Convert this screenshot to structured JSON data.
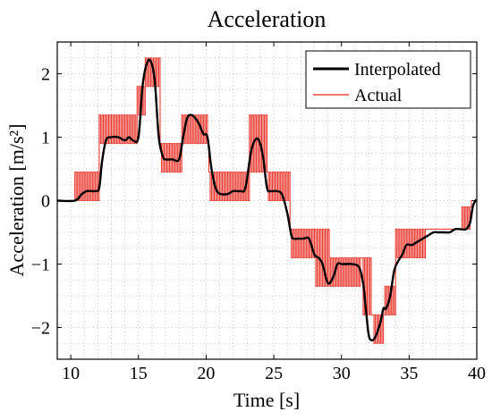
{
  "chart_data": {
    "type": "line",
    "title": "Acceleration",
    "xlabel": "Time [s]",
    "ylabel": "Acceleration [m/s²]",
    "xlim": [
      9,
      40
    ],
    "ylim": [
      -2.5,
      2.5
    ],
    "xticks": [
      10,
      15,
      20,
      25,
      30,
      35,
      40
    ],
    "yticks": [
      -2,
      -1,
      0,
      1,
      2
    ],
    "xtick_labels": [
      "10",
      "15",
      "20",
      "25",
      "30",
      "35",
      "40"
    ],
    "ytick_labels": [
      "−2",
      "−1",
      "0",
      "1",
      "2"
    ],
    "grid": true,
    "legend_position": "top-right",
    "series": [
      {
        "name": "Interpolated",
        "color": "#000000",
        "x": [
          9,
          10.3,
          10.8,
          11.2,
          11.8,
          12.1,
          12.3,
          12.6,
          13.0,
          13.5,
          14.0,
          14.3,
          14.6,
          15.0,
          15.3,
          15.6,
          15.9,
          16.2,
          16.5,
          16.8,
          17.0,
          17.5,
          18.0,
          18.3,
          18.6,
          18.9,
          19.2,
          19.5,
          19.8,
          20.1,
          20.4,
          20.8,
          21.5,
          22.0,
          22.5,
          22.9,
          23.3,
          23.6,
          23.9,
          24.2,
          24.5,
          24.8,
          25.2,
          25.6,
          26.0,
          26.3,
          26.5,
          26.8,
          27.2,
          27.6,
          28.0,
          28.3,
          28.6,
          29.0,
          29.4,
          29.7,
          30.0,
          30.3,
          30.8,
          31.3,
          31.6,
          31.8,
          32.0,
          32.2,
          32.5,
          32.9,
          33.1,
          33.3,
          33.6,
          33.9,
          34.2,
          34.5,
          34.8,
          35.2,
          35.6,
          36.0,
          36.4,
          36.8,
          37.2,
          37.6,
          38.0,
          38.4,
          38.8,
          39.2,
          39.5,
          39.7,
          39.9,
          40
        ],
        "y": [
          0,
          0,
          0.1,
          0.15,
          0.15,
          0.2,
          0.6,
          0.95,
          1.0,
          1.0,
          0.95,
          1.0,
          0.95,
          1.0,
          1.8,
          2.15,
          2.2,
          1.9,
          1.0,
          0.7,
          0.65,
          0.65,
          0.65,
          1.0,
          1.3,
          1.35,
          1.3,
          1.2,
          1.05,
          1.0,
          0.5,
          0.15,
          0.1,
          0.15,
          0.15,
          0.2,
          0.75,
          0.95,
          0.95,
          0.7,
          0.2,
          0.15,
          0.15,
          0.1,
          -0.2,
          -0.55,
          -0.6,
          -0.6,
          -0.6,
          -0.6,
          -0.85,
          -0.9,
          -1.0,
          -1.3,
          -1.2,
          -1.0,
          -1.0,
          -1.0,
          -1.0,
          -1.05,
          -1.3,
          -1.7,
          -2.1,
          -2.2,
          -2.15,
          -1.9,
          -1.7,
          -1.7,
          -1.5,
          -1.1,
          -0.95,
          -0.85,
          -0.7,
          -0.7,
          -0.65,
          -0.6,
          -0.55,
          -0.5,
          -0.5,
          -0.5,
          -0.5,
          -0.45,
          -0.45,
          -0.45,
          -0.35,
          -0.1,
          0,
          0
        ]
      },
      {
        "name": "Actual",
        "color": "#e8281e"
      }
    ],
    "actual_levels": [
      {
        "from": 9,
        "to": 10.3,
        "low": 0,
        "high": 0
      },
      {
        "from": 10.3,
        "to": 12.1,
        "low": 0,
        "high": 0.45
      },
      {
        "from": 12.1,
        "to": 14.9,
        "low": 0.9,
        "high": 1.35
      },
      {
        "from": 14.9,
        "to": 15.5,
        "low": 1.35,
        "high": 1.8
      },
      {
        "from": 15.5,
        "to": 16.6,
        "low": 1.8,
        "high": 2.25
      },
      {
        "from": 16.6,
        "to": 18.2,
        "low": 0.45,
        "high": 0.9
      },
      {
        "from": 18.2,
        "to": 20.2,
        "low": 0.9,
        "high": 1.35
      },
      {
        "from": 20.2,
        "to": 23.2,
        "low": 0,
        "high": 0.45
      },
      {
        "from": 23.2,
        "to": 24.5,
        "low": 0.45,
        "high": 1.35
      },
      {
        "from": 24.5,
        "to": 26.2,
        "low": 0,
        "high": 0.45
      },
      {
        "from": 26.2,
        "to": 28.0,
        "low": -0.9,
        "high": -0.45
      },
      {
        "from": 28.0,
        "to": 29.2,
        "low": -1.35,
        "high": -0.45
      },
      {
        "from": 29.2,
        "to": 31.5,
        "low": -1.35,
        "high": -0.9
      },
      {
        "from": 31.5,
        "to": 32.3,
        "low": -1.8,
        "high": -0.9
      },
      {
        "from": 32.3,
        "to": 33.2,
        "low": -2.25,
        "high": -1.8
      },
      {
        "from": 33.2,
        "to": 34.0,
        "low": -1.8,
        "high": -1.35
      },
      {
        "from": 34.0,
        "to": 36.3,
        "low": -0.9,
        "high": -0.45
      },
      {
        "from": 36.3,
        "to": 38.9,
        "low": -0.45,
        "high": -0.45
      },
      {
        "from": 38.9,
        "to": 39.6,
        "low": -0.45,
        "high": -0.1
      },
      {
        "from": 39.6,
        "to": 40,
        "low": 0,
        "high": 0
      }
    ]
  }
}
